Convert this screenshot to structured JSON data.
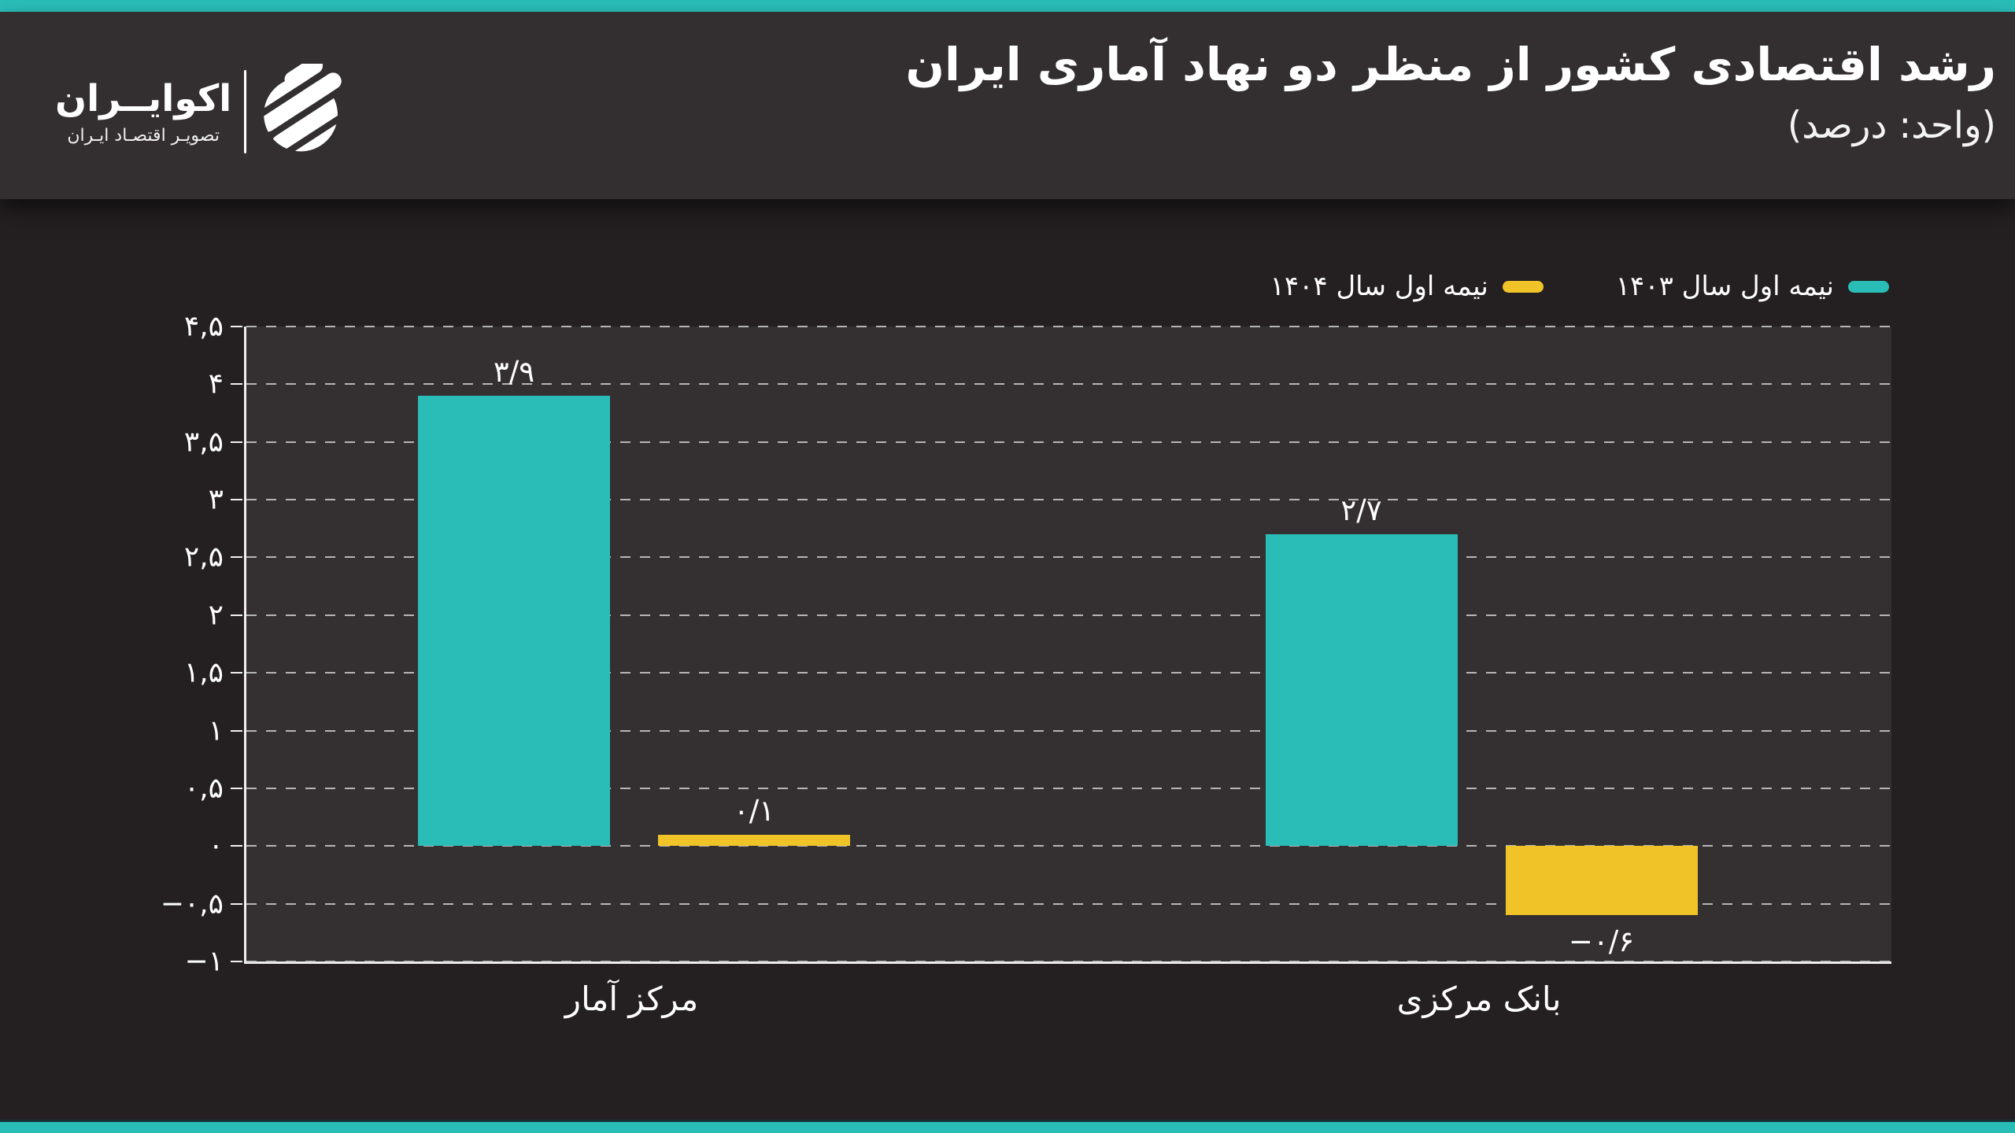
{
  "accent": {
    "teal": "#2ABDB8",
    "yellow": "#F0C428",
    "header_bg": "#332F30",
    "body_bg": "#242021",
    "plot_bg": "#343031"
  },
  "brand": {
    "name": "اکوایــران",
    "tagline": "تصویـر اقتصـاد ایـران"
  },
  "header": {
    "title": "رشد اقتصادی کشور از منظر دو نهاد آماری ایران",
    "subtitle": "(واحد: درصد)"
  },
  "chart_data": {
    "type": "bar",
    "title": "رشد اقتصادی کشور از منظر دو نهاد آماری ایران",
    "unit_note": "(واحد: درصد)",
    "categories": [
      "مرکز آمار",
      "بانک مرکزی"
    ],
    "series": [
      {
        "name": "نیمه اول سال ۱۴۰۳",
        "color": "#2ABDB8",
        "values": [
          3.9,
          2.7
        ],
        "value_labels": [
          "۳/۹",
          "۲/۷"
        ]
      },
      {
        "name": "نیمه اول سال ۱۴۰۴",
        "color": "#F0C428",
        "values": [
          0.1,
          -0.6
        ],
        "value_labels": [
          "۰/۱",
          "−۰/۶"
        ]
      }
    ],
    "ylim": [
      -1,
      4.5
    ],
    "yticks": [
      {
        "v": 4.5,
        "label": "۴,۵"
      },
      {
        "v": 4,
        "label": "۴"
      },
      {
        "v": 3.5,
        "label": "۳,۵"
      },
      {
        "v": 3,
        "label": "۳"
      },
      {
        "v": 2.5,
        "label": "۲,۵"
      },
      {
        "v": 2,
        "label": "۲"
      },
      {
        "v": 1.5,
        "label": "۱,۵"
      },
      {
        "v": 1,
        "label": "۱"
      },
      {
        "v": 0.5,
        "label": "۰,۵"
      },
      {
        "v": 0,
        "label": "۰"
      },
      {
        "v": -0.5,
        "label": "−۰,۵"
      },
      {
        "v": -1,
        "label": "−۱"
      }
    ],
    "grid": "horizontal-dashed",
    "legend_position": "top-right"
  }
}
